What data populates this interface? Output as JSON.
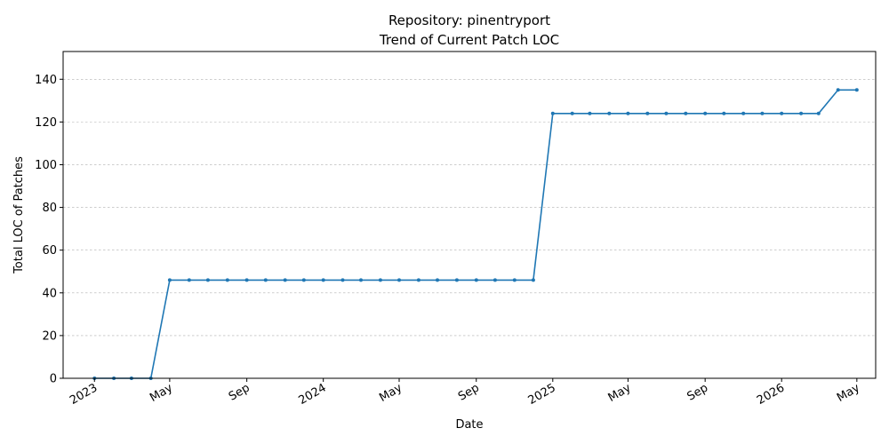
{
  "chart_data": {
    "type": "line",
    "title": "Repository: pinentryport",
    "subtitle": "Trend of Current Patch LOC",
    "xlabel": "Date",
    "ylabel": "Total LOC of Patches",
    "ylim": [
      0,
      153
    ],
    "yticks": [
      0,
      20,
      40,
      60,
      80,
      100,
      120,
      140
    ],
    "xlim": [
      "2022-11-12",
      "2026-05-31"
    ],
    "xticks": [
      {
        "date": "2023-01-01",
        "label": "2023"
      },
      {
        "date": "2023-05-01",
        "label": "May"
      },
      {
        "date": "2023-09-01",
        "label": "Sep"
      },
      {
        "date": "2024-01-01",
        "label": "2024"
      },
      {
        "date": "2024-05-01",
        "label": "May"
      },
      {
        "date": "2024-09-01",
        "label": "Sep"
      },
      {
        "date": "2025-01-01",
        "label": "2025"
      },
      {
        "date": "2025-05-01",
        "label": "May"
      },
      {
        "date": "2025-09-01",
        "label": "Sep"
      },
      {
        "date": "2026-01-01",
        "label": "2026"
      },
      {
        "date": "2026-05-01",
        "label": "May"
      }
    ],
    "grid": "y-dashed",
    "line_color": "#1f77b4",
    "series": [
      {
        "x": [
          "2023-01-01",
          "2023-02-01",
          "2023-03-01",
          "2023-04-01",
          "2023-05-01",
          "2023-06-01",
          "2023-07-01",
          "2023-08-01",
          "2023-09-01",
          "2023-10-01",
          "2023-11-01",
          "2023-12-01",
          "2024-01-01",
          "2024-02-01",
          "2024-03-01",
          "2024-04-01",
          "2024-05-01",
          "2024-06-01",
          "2024-07-01",
          "2024-08-01",
          "2024-09-01",
          "2024-10-01",
          "2024-11-01",
          "2024-12-01",
          "2025-01-01",
          "2025-02-01",
          "2025-03-01",
          "2025-04-01",
          "2025-05-01",
          "2025-06-01",
          "2025-07-01",
          "2025-08-01",
          "2025-09-01",
          "2025-10-01",
          "2025-11-01",
          "2025-12-01",
          "2026-01-01",
          "2026-02-01",
          "2026-03-01",
          "2026-04-01",
          "2026-05-01"
        ],
        "values": [
          0,
          0,
          0,
          0,
          46,
          46,
          46,
          46,
          46,
          46,
          46,
          46,
          46,
          46,
          46,
          46,
          46,
          46,
          46,
          46,
          46,
          46,
          46,
          46,
          124,
          124,
          124,
          124,
          124,
          124,
          124,
          124,
          124,
          124,
          124,
          124,
          124,
          124,
          124,
          135,
          135
        ]
      }
    ]
  }
}
